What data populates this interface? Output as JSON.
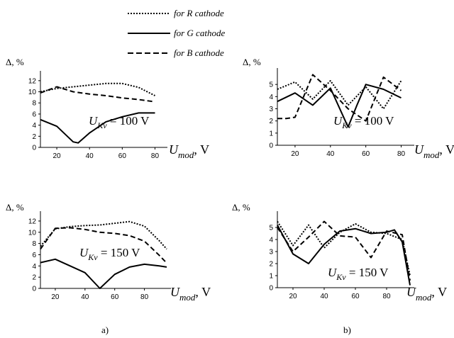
{
  "legend": [
    {
      "label": "for R cathode",
      "style": "dotted"
    },
    {
      "label": "for G cathode",
      "style": "solid"
    },
    {
      "label": "for B cathode",
      "style": "dashed"
    }
  ],
  "labels": {
    "a": "a)",
    "b": "b)"
  },
  "chart_data": [
    {
      "type": "line",
      "panel": "a-top",
      "ylabel": "Δ, %",
      "xlabel": "U_mod, V",
      "annotation": "U_Kv = 100 V",
      "xlim": [
        10,
        85
      ],
      "ylim": [
        0,
        13
      ],
      "xticks": [
        20,
        40,
        60,
        80
      ],
      "yticks": [
        0,
        2,
        4,
        6,
        8,
        10,
        12
      ],
      "series": [
        {
          "name": "for R cathode",
          "x": [
            10,
            20,
            30,
            40,
            50,
            60,
            70,
            80
          ],
          "y": [
            10.0,
            10.6,
            10.9,
            11.2,
            11.5,
            11.5,
            10.8,
            9.3
          ]
        },
        {
          "name": "for G cathode",
          "x": [
            10,
            20,
            30,
            33,
            40,
            50,
            60,
            70,
            80
          ],
          "y": [
            5.0,
            3.8,
            1.0,
            0.8,
            2.6,
            4.6,
            5.5,
            6.2,
            6.2
          ]
        },
        {
          "name": "for B cathode",
          "x": [
            10,
            20,
            30,
            40,
            50,
            60,
            70,
            80
          ],
          "y": [
            9.8,
            10.9,
            10.0,
            9.6,
            9.3,
            8.9,
            8.6,
            8.2
          ]
        }
      ]
    },
    {
      "type": "line",
      "panel": "b-top",
      "ylabel": "Δ, %",
      "xlabel": "U_mod, V",
      "annotation": "U_Kv = 100 V",
      "xlim": [
        10,
        85
      ],
      "ylim": [
        0,
        6
      ],
      "xticks": [
        20,
        40,
        60,
        80
      ],
      "yticks": [
        0,
        1,
        2,
        3,
        4,
        5
      ],
      "series": [
        {
          "name": "for R cathode",
          "x": [
            10,
            20,
            30,
            40,
            50,
            60,
            70,
            80
          ],
          "y": [
            4.6,
            5.2,
            3.8,
            5.3,
            3.3,
            4.8,
            3.0,
            5.3
          ]
        },
        {
          "name": "for G cathode",
          "x": [
            10,
            20,
            30,
            40,
            50,
            55,
            60,
            70,
            80
          ],
          "y": [
            3.6,
            4.3,
            3.3,
            4.7,
            1.5,
            3.3,
            5.0,
            4.6,
            3.9
          ]
        },
        {
          "name": "for B cathode",
          "x": [
            10,
            15,
            20,
            30,
            40,
            50,
            60,
            70,
            80
          ],
          "y": [
            2.2,
            2.2,
            2.3,
            5.8,
            4.5,
            3.0,
            2.0,
            5.6,
            4.5
          ]
        }
      ]
    },
    {
      "type": "line",
      "panel": "a-bottom",
      "ylabel": "Δ, %",
      "xlabel": "U_mod, V",
      "annotation": "U_Kv = 150 V",
      "xlim": [
        10,
        95
      ],
      "ylim": [
        0,
        13
      ],
      "xticks": [
        20,
        40,
        60,
        80
      ],
      "yticks": [
        0,
        2,
        4,
        6,
        8,
        10,
        12
      ],
      "series": [
        {
          "name": "for R cathode",
          "x": [
            10,
            20,
            30,
            40,
            50,
            60,
            70,
            80,
            90,
            95
          ],
          "y": [
            7.5,
            10.6,
            11.0,
            11.2,
            11.3,
            11.6,
            11.9,
            11.1,
            8.5,
            7.0
          ]
        },
        {
          "name": "for G cathode",
          "x": [
            10,
            20,
            30,
            40,
            50,
            60,
            70,
            80,
            90,
            95
          ],
          "y": [
            4.6,
            5.2,
            4.0,
            2.8,
            0.0,
            2.5,
            3.8,
            4.3,
            4.0,
            3.8
          ]
        },
        {
          "name": "for B cathode",
          "x": [
            10,
            20,
            30,
            40,
            50,
            60,
            70,
            80,
            90,
            95
          ],
          "y": [
            7.0,
            10.7,
            10.8,
            10.5,
            10.0,
            9.8,
            9.4,
            8.4,
            5.9,
            4.5
          ]
        }
      ]
    },
    {
      "type": "line",
      "panel": "b-bottom",
      "ylabel": "Δ, %",
      "xlabel": "U_mod, V",
      "annotation": "U_Kv = 150 V",
      "xlim": [
        10,
        95
      ],
      "ylim": [
        0,
        6
      ],
      "xticks": [
        20,
        40,
        60,
        80
      ],
      "yticks": [
        0,
        1,
        2,
        3,
        4,
        5
      ],
      "series": [
        {
          "name": "for R cathode",
          "x": [
            10,
            20,
            30,
            40,
            50,
            60,
            70,
            80,
            90,
            95
          ],
          "y": [
            5.5,
            3.5,
            5.2,
            3.3,
            4.6,
            5.3,
            4.6,
            4.5,
            4.0,
            1.0
          ]
        },
        {
          "name": "for G cathode",
          "x": [
            10,
            20,
            30,
            40,
            50,
            60,
            70,
            80,
            85,
            90,
            95
          ],
          "y": [
            5.2,
            2.8,
            2.0,
            3.6,
            4.7,
            4.9,
            4.5,
            4.6,
            4.8,
            3.8,
            0.2
          ]
        },
        {
          "name": "for B cathode",
          "x": [
            10,
            20,
            30,
            40,
            50,
            60,
            70,
            80,
            90,
            95
          ],
          "y": [
            5.0,
            3.0,
            4.2,
            5.5,
            4.3,
            4.2,
            2.5,
            4.7,
            4.4,
            0.6
          ]
        }
      ]
    }
  ]
}
